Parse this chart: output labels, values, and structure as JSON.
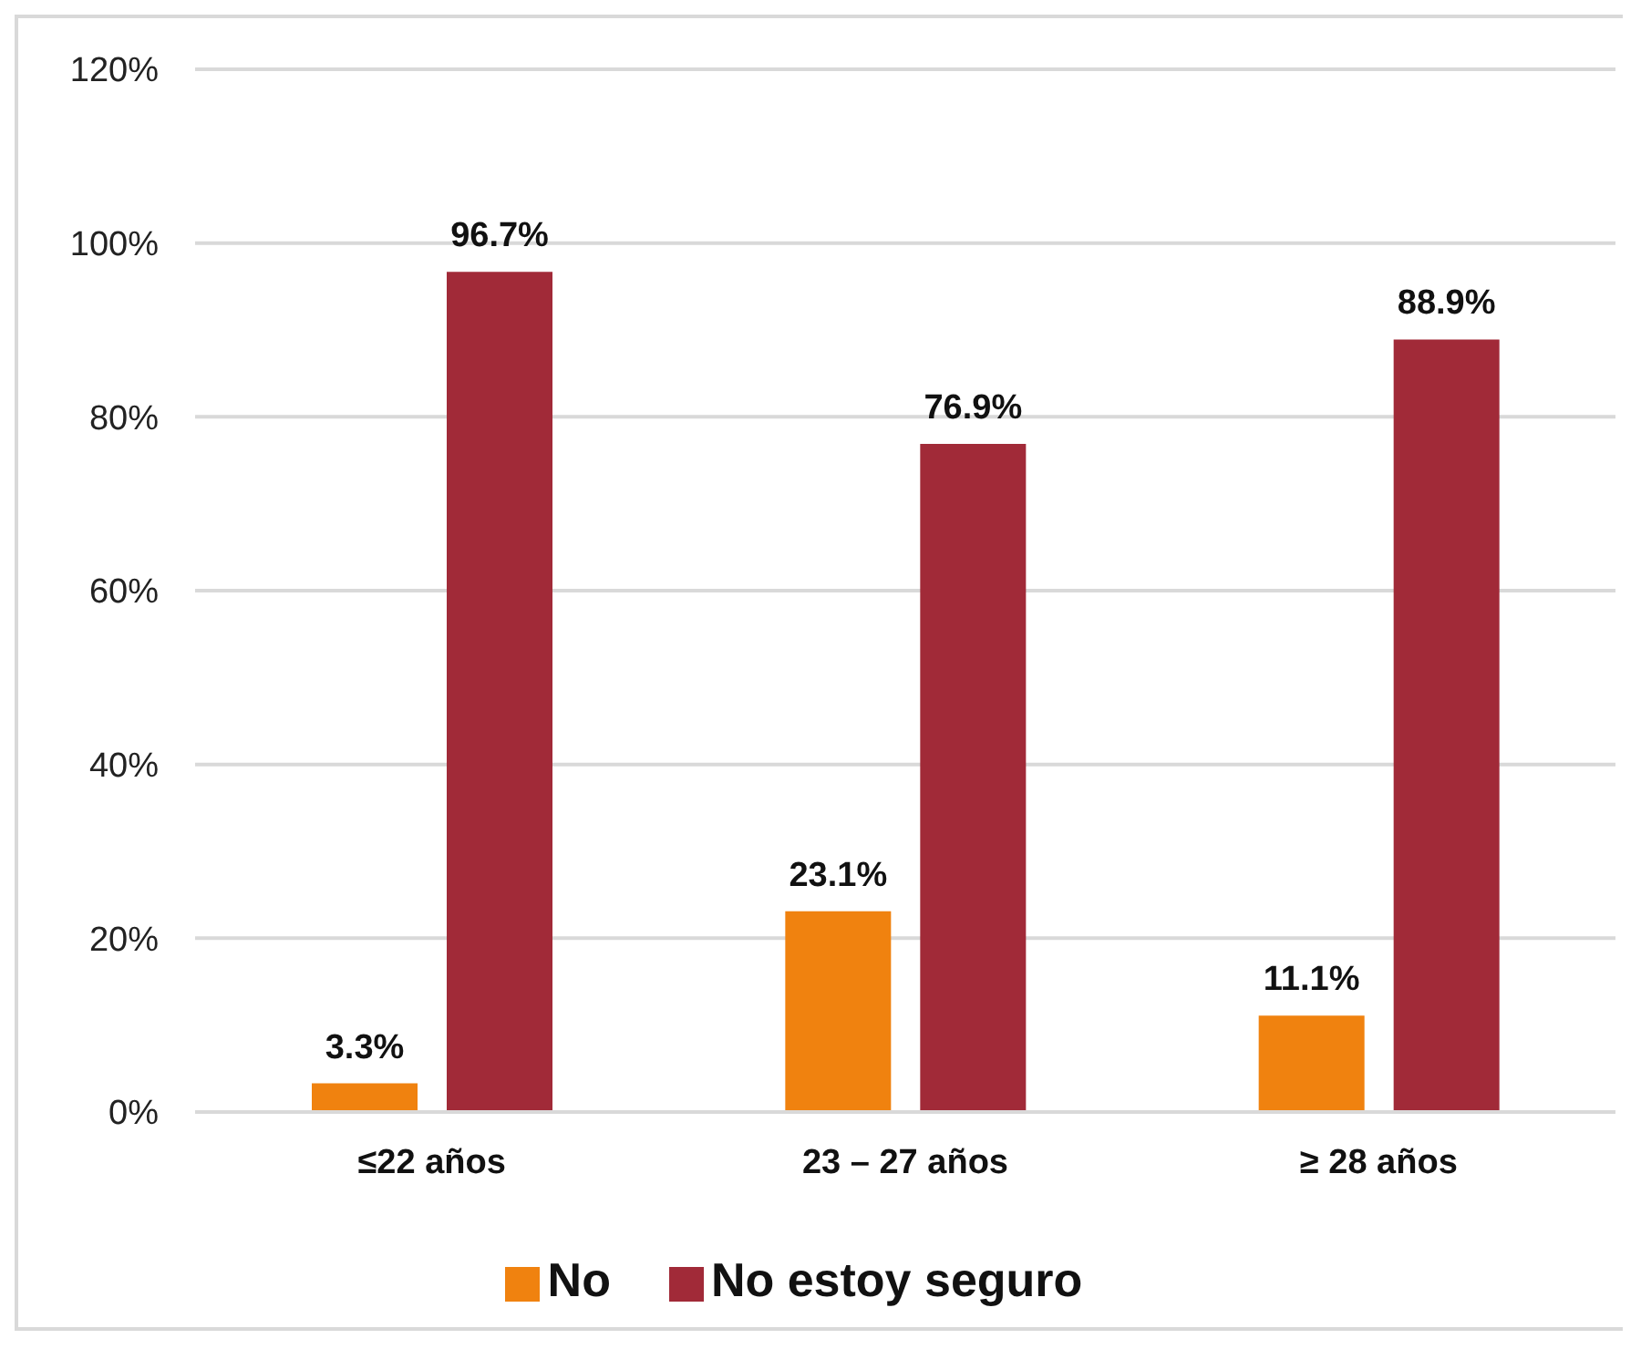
{
  "chart_data": {
    "type": "bar",
    "categories": [
      "≤22 años",
      "23 – 27 años",
      "≥ 28 años"
    ],
    "series": [
      {
        "name": "No",
        "color": "#f0820f",
        "values": [
          3.3,
          23.1,
          11.1
        ],
        "value_labels": [
          "3.3%",
          "23.1%",
          "11.1%"
        ]
      },
      {
        "name": "No estoy seguro",
        "color": "#a12a38",
        "values": [
          96.7,
          76.9,
          88.9
        ],
        "value_labels": [
          "96.7%",
          "76.9%",
          "88.9%"
        ]
      }
    ],
    "ylim": [
      0,
      120
    ],
    "yticks": [
      {
        "value": 0,
        "label": "0%"
      },
      {
        "value": 20,
        "label": "20%"
      },
      {
        "value": 40,
        "label": "40%"
      },
      {
        "value": 60,
        "label": "60%"
      },
      {
        "value": 80,
        "label": "80%"
      },
      {
        "value": 100,
        "label": "100%"
      },
      {
        "value": 120,
        "label": "120%"
      }
    ],
    "grid": "y",
    "legend": "bottom"
  }
}
